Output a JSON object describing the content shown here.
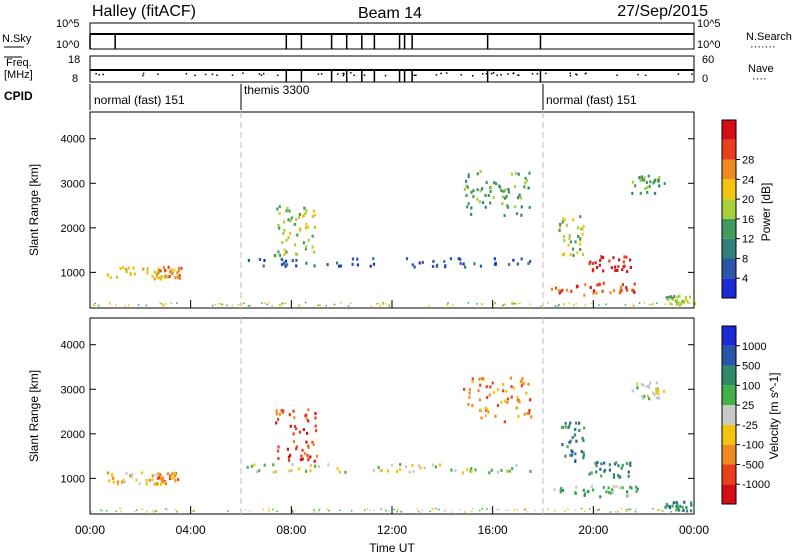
{
  "header": {
    "station": "Halley (fitACF)",
    "beam": "Beam 14",
    "date": "27/Sep/2015"
  },
  "top_panels": {
    "nsky_label": "N.Sky",
    "nsearch_label": "N.Search",
    "nsearch_dots": "·······",
    "nsky_ticks": [
      "10^5",
      "10^0"
    ],
    "nsearch_ticks": [
      "10^5",
      "10^0"
    ],
    "freq_label_line1": "Freq.",
    "freq_label_line2": "[MHz]",
    "freq_ticks": [
      "18",
      "8"
    ],
    "nave_label": "Nave",
    "nave_dots": "····",
    "nave_ticks": [
      "60",
      "0"
    ],
    "cpid_label": "CPID",
    "cpid_segments": [
      {
        "label": "normal (fast) 151",
        "start_h": 0,
        "end_h": 6
      },
      {
        "label": "themis 3300",
        "start_h": 6,
        "end_h": 18
      },
      {
        "label": "normal (fast) 151",
        "start_h": 18,
        "end_h": 24
      }
    ]
  },
  "chart_data": [
    {
      "type": "heatmap",
      "name": "power",
      "ylabel": "Slant Range [km]",
      "yticks": [
        "1000",
        "2000",
        "3000",
        "4000"
      ],
      "ylim": [
        200,
        4600
      ],
      "xlim_hours": [
        0,
        24
      ],
      "colorbar_label": "Power [dB]",
      "colorbar_ticks": [
        "4",
        "8",
        "12",
        "16",
        "20",
        "24",
        "28"
      ],
      "colors": [
        "#1a2bd6",
        "#2a55a8",
        "#2f7f7a",
        "#3f9a5c",
        "#a8cf3a",
        "#f2c411",
        "#f08a1e",
        "#e8401c",
        "#d60f16"
      ],
      "scatter_regions": [
        {
          "t": [
            0.6,
            3.2
          ],
          "r": [
            880,
            1160
          ],
          "level": 5
        },
        {
          "t": [
            2.6,
            3.6
          ],
          "r": [
            900,
            1150
          ],
          "level": 6
        },
        {
          "t": [
            7.3,
            9.0
          ],
          "r": [
            1400,
            2600
          ],
          "level": 4
        },
        {
          "t": [
            14.8,
            17.5
          ],
          "r": [
            2300,
            3300
          ],
          "level": 3
        },
        {
          "t": [
            18.3,
            21.8
          ],
          "r": [
            500,
            800
          ],
          "level": 7
        },
        {
          "t": [
            19.8,
            21.5
          ],
          "r": [
            1050,
            1400
          ],
          "level": 8
        },
        {
          "t": [
            18.6,
            19.6
          ],
          "r": [
            1400,
            2300
          ],
          "level": 4
        },
        {
          "t": [
            22.8,
            24.0
          ],
          "r": [
            300,
            500
          ],
          "level": 4
        },
        {
          "t": [
            21.5,
            22.8
          ],
          "r": [
            2800,
            3200
          ],
          "level": 3
        },
        {
          "t": [
            6.2,
            17.5
          ],
          "r": [
            1150,
            1350
          ],
          "level": 1
        }
      ]
    },
    {
      "type": "heatmap",
      "name": "velocity",
      "xlabel": "Time UT",
      "ylabel": "Slant Range [km]",
      "yticks": [
        "1000",
        "2000",
        "3000",
        "4000"
      ],
      "ylim": [
        200,
        4600
      ],
      "xlim_hours": [
        0,
        24
      ],
      "xticks": [
        "00:00",
        "04:00",
        "08:00",
        "12:00",
        "16:00",
        "20:00",
        "00:00"
      ],
      "colorbar_label": "Velocity [m s^-1]",
      "colorbar_ticks": [
        "1000",
        "500",
        "100",
        "25",
        "-25",
        "-100",
        "-500",
        "-1000"
      ],
      "colors": [
        "#1a2bd6",
        "#2a55a8",
        "#2f8a6a",
        "#44b04a",
        "#c9c9c9",
        "#f2c411",
        "#f08a1e",
        "#e8401c",
        "#d60f16"
      ],
      "scatter_regions": [
        {
          "t": [
            0.6,
            3.2
          ],
          "r": [
            880,
            1160
          ],
          "level": 5
        },
        {
          "t": [
            2.6,
            3.6
          ],
          "r": [
            900,
            1150
          ],
          "level": 6
        },
        {
          "t": [
            7.3,
            9.0
          ],
          "r": [
            1400,
            2600
          ],
          "level": 7
        },
        {
          "t": [
            14.8,
            17.5
          ],
          "r": [
            2300,
            3300
          ],
          "level": 6
        },
        {
          "t": [
            18.3,
            21.8
          ],
          "r": [
            600,
            860
          ],
          "level": 3
        },
        {
          "t": [
            19.8,
            21.5
          ],
          "r": [
            1050,
            1400
          ],
          "level": 2
        },
        {
          "t": [
            18.6,
            19.6
          ],
          "r": [
            1400,
            2300
          ],
          "level": 2
        },
        {
          "t": [
            22.8,
            24.0
          ],
          "r": [
            300,
            500
          ],
          "level": 2
        },
        {
          "t": [
            21.5,
            22.8
          ],
          "r": [
            2800,
            3200
          ],
          "level": 4
        },
        {
          "t": [
            6.2,
            17.5
          ],
          "r": [
            1150,
            1350
          ],
          "level": 4
        }
      ]
    }
  ],
  "x_axis": {
    "label": "Time UT",
    "ticks": [
      "00:00",
      "04:00",
      "08:00",
      "12:00",
      "16:00",
      "20:00",
      "00:00"
    ]
  }
}
